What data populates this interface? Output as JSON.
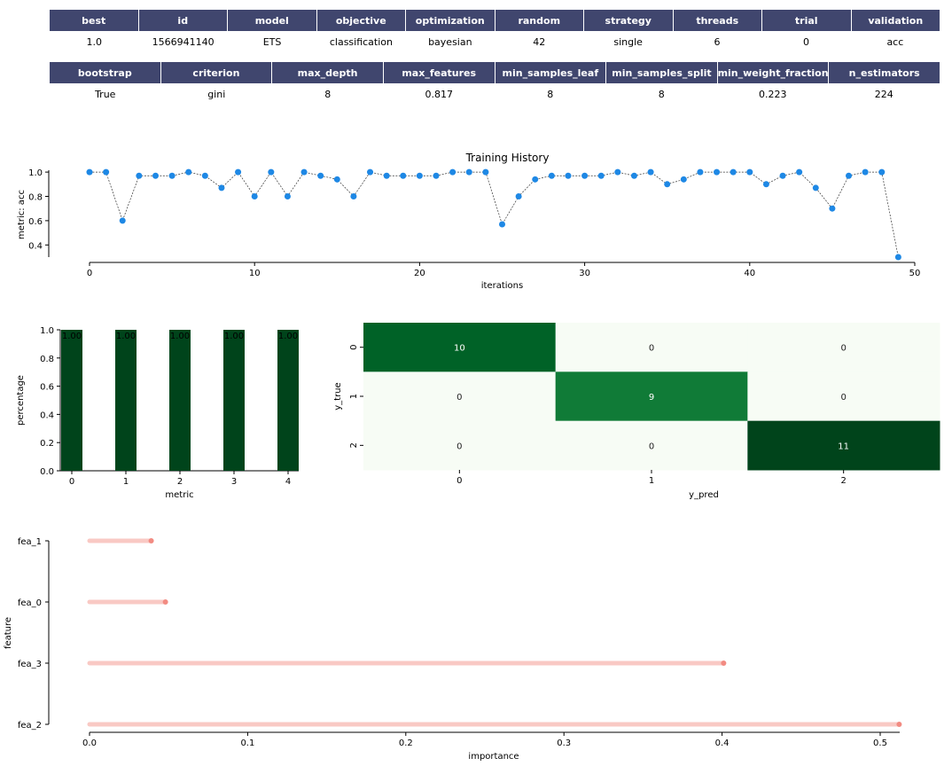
{
  "params_table": {
    "headers": [
      "best",
      "id",
      "model",
      "objective",
      "optimization",
      "random",
      "strategy",
      "threads",
      "trial",
      "validation"
    ],
    "values": [
      "1.0",
      "1566941140",
      "ETS",
      "classification",
      "bayesian",
      "42",
      "single",
      "6",
      "0",
      "acc"
    ]
  },
  "hyper_table": {
    "headers": [
      "bootstrap",
      "criterion",
      "max_depth",
      "max_features",
      "min_samples_leaf",
      "min_samples_split",
      "min_weight_fraction",
      "n_estimators"
    ],
    "values": [
      "True",
      "gini",
      "8",
      "0.817",
      "8",
      "8",
      "0.223",
      "224"
    ]
  },
  "colors": {
    "table_header": "#40466e",
    "history_point": "#1e88e5",
    "bar": "#00441b",
    "importance_line": "#f9c9c4",
    "importance_point": "#f28b82"
  },
  "chart_data": [
    {
      "type": "line",
      "title": "Training History",
      "xlabel": "iterations",
      "ylabel": "metric: acc",
      "xlim": [
        0,
        50
      ],
      "ylim": [
        0.3,
        1.03
      ],
      "xticks": [
        "0",
        "10",
        "20",
        "30",
        "40",
        "50"
      ],
      "yticks": [
        "0.4",
        "0.6",
        "0.8",
        "1.0"
      ],
      "x": [
        0,
        1,
        2,
        3,
        4,
        5,
        6,
        7,
        8,
        9,
        10,
        11,
        12,
        13,
        14,
        15,
        16,
        17,
        18,
        19,
        20,
        21,
        22,
        23,
        24,
        25,
        26,
        27,
        28,
        29,
        30,
        31,
        32,
        33,
        34,
        35,
        36,
        37,
        38,
        39,
        40,
        41,
        42,
        43,
        44,
        45,
        46,
        47,
        48,
        49
      ],
      "y": [
        1.0,
        1.0,
        0.6,
        0.97,
        0.97,
        0.97,
        1.0,
        0.97,
        0.87,
        1.0,
        0.8,
        1.0,
        0.8,
        1.0,
        0.97,
        0.94,
        0.8,
        1.0,
        0.97,
        0.97,
        0.97,
        0.97,
        1.0,
        1.0,
        1.0,
        0.57,
        0.8,
        0.94,
        0.97,
        0.97,
        0.97,
        0.97,
        1.0,
        0.97,
        1.0,
        0.9,
        0.94,
        1.0,
        1.0,
        1.0,
        1.0,
        0.9,
        0.97,
        1.0,
        0.87,
        0.7,
        0.97,
        1.0,
        1.0,
        0.3
      ]
    },
    {
      "type": "bar",
      "xlabel": "metric",
      "ylabel": "percentage",
      "ylim": [
        0,
        1.0
      ],
      "categories": [
        "0",
        "1",
        "2",
        "3",
        "4"
      ],
      "values": [
        1.0,
        1.0,
        1.0,
        1.0,
        1.0
      ],
      "data_labels": [
        "1.00",
        "1.00",
        "1.00",
        "1.00",
        "1.00"
      ],
      "yticks": [
        "0.0",
        "0.2",
        "0.4",
        "0.6",
        "0.8",
        "1.0"
      ]
    },
    {
      "type": "heatmap",
      "xlabel": "y_pred",
      "ylabel": "y_true",
      "x_categories": [
        "0",
        "1",
        "2"
      ],
      "y_categories": [
        "0",
        "1",
        "2"
      ],
      "matrix": [
        [
          10,
          0,
          0
        ],
        [
          0,
          9,
          0
        ],
        [
          0,
          0,
          11
        ]
      ],
      "colormap": "Greens"
    },
    {
      "type": "scatter",
      "xlabel": "importance",
      "ylabel": "feature",
      "features": [
        "fea_1",
        "fea_0",
        "fea_3",
        "fea_2"
      ],
      "values": [
        0.039,
        0.048,
        0.401,
        0.512
      ],
      "xlim": [
        0,
        0.52
      ],
      "xticks": [
        "0.0",
        "0.1",
        "0.2",
        "0.3",
        "0.4",
        "0.5"
      ]
    }
  ]
}
